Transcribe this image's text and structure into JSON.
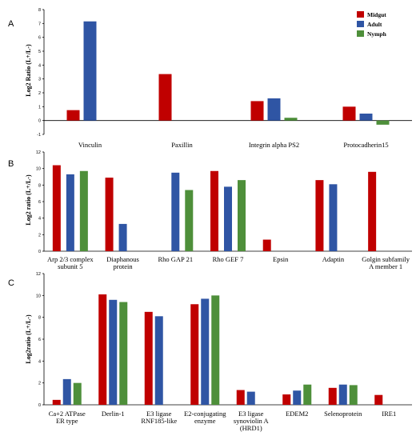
{
  "legend": [
    "Midgut",
    "Adult",
    "Nymph"
  ],
  "colors": {
    "Midgut": "#c00000",
    "Adult": "#2f55a4",
    "Nymph": "#4e8f3a"
  },
  "chart_data": [
    {
      "type": "bar",
      "panel": "A",
      "ylabel": "Log2 Ratio (L+/L-)",
      "ylim": [
        -1,
        8
      ],
      "yticks": [
        -1,
        0,
        1,
        2,
        3,
        4,
        5,
        6,
        7,
        8
      ],
      "categories": [
        "Vinculin",
        "Paxillin",
        "Integrin alpha PS2",
        "Protocadherin15"
      ],
      "series": [
        {
          "name": "Midgut",
          "values": [
            0.75,
            3.35,
            1.4,
            1.0
          ]
        },
        {
          "name": "Adult",
          "values": [
            7.15,
            null,
            1.6,
            0.5
          ]
        },
        {
          "name": "Nymph",
          "values": [
            null,
            null,
            0.2,
            -0.3
          ]
        }
      ]
    },
    {
      "type": "bar",
      "panel": "B",
      "ylabel": "Log2 ratio (L+/L-)",
      "ylim": [
        0,
        12
      ],
      "yticks": [
        0,
        2,
        4,
        6,
        8,
        10,
        12
      ],
      "categories": [
        "Arp 2/3 complex\nsubunit 5",
        "Diaphanous\nprotein",
        "Rho GAP 21",
        "Rho GEF 7",
        "Epsin",
        "Adaptin",
        "Golgin subfamily\nA member 1"
      ],
      "series": [
        {
          "name": "Midgut",
          "values": [
            10.4,
            8.9,
            null,
            9.7,
            1.4,
            8.6,
            9.6
          ]
        },
        {
          "name": "Adult",
          "values": [
            9.3,
            3.3,
            9.5,
            7.8,
            null,
            8.1,
            null
          ]
        },
        {
          "name": "Nymph",
          "values": [
            9.7,
            null,
            7.4,
            8.6,
            null,
            null,
            null
          ]
        }
      ]
    },
    {
      "type": "bar",
      "panel": "C",
      "ylabel": "Log2ratio (L+/L-)",
      "ylim": [
        0,
        12
      ],
      "yticks": [
        0,
        2,
        4,
        6,
        8,
        10,
        12
      ],
      "categories": [
        "Ca+2 ATPase\nER type",
        "Derlin-1",
        "E3 ligase\nRNF185-like",
        "E2-conjugating\nenzyme",
        "E3 ligase\nsynoviolin A\n(HRD1)",
        "EDEM2",
        "Selenoprotein",
        "IRE1"
      ],
      "series": [
        {
          "name": "Midgut",
          "values": [
            0.45,
            10.1,
            8.5,
            9.2,
            1.35,
            0.95,
            1.55,
            0.9
          ]
        },
        {
          "name": "Adult",
          "values": [
            2.35,
            9.6,
            8.1,
            9.7,
            1.2,
            1.3,
            1.85,
            null
          ]
        },
        {
          "name": "Nymph",
          "values": [
            2.0,
            9.4,
            null,
            10.0,
            null,
            1.85,
            1.8,
            null
          ]
        }
      ]
    }
  ]
}
